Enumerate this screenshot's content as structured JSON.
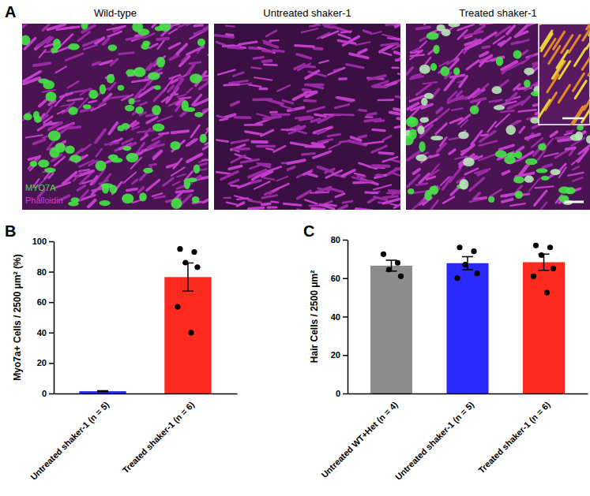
{
  "panel_a": {
    "label": "A",
    "titles": [
      "Wild-type",
      "Untreated shaker-1",
      "Treated shaker-1"
    ],
    "channels": [
      {
        "text": "MYO7A",
        "color": "#3fe03f"
      },
      {
        "text": "Phalloidin",
        "color": "#d13fd6"
      }
    ]
  },
  "chart_data": [
    {
      "type": "bar",
      "annotations": [
        "B"
      ],
      "categories": [
        "Untreated shaker-1 (n = 5)",
        "Treated shaker-1 (n = 6)"
      ],
      "values": [
        1.5,
        76.5
      ],
      "errors": [
        0.3,
        9.3
      ],
      "points": [
        [],
        [
          95,
          93,
          86,
          83,
          57,
          40
        ]
      ],
      "colors": [
        "#2a2aff",
        "#ff2a1f"
      ],
      "y_label": "Myo7a+ Cells / 2500 μm² (%)",
      "ylim": [
        0,
        100
      ],
      "yticks": [
        0,
        20,
        40,
        60,
        80,
        100
      ]
    },
    {
      "type": "bar",
      "annotations": [
        "C"
      ],
      "categories": [
        "Untreated WT+Het (n = 4)",
        "Untreated shaker-1 (n = 5)",
        "Treated shaker-1 (n = 6)"
      ],
      "values": [
        66.5,
        67.8,
        68.3
      ],
      "errors": [
        2.8,
        3.4,
        4.2
      ],
      "points": [
        [
          72.5,
          68,
          64.5,
          61
        ],
        [
          76,
          74,
          67,
          62.5,
          60
        ],
        [
          77,
          76,
          72,
          65,
          61,
          52.5
        ]
      ],
      "colors": [
        "#8c8c8c",
        "#2a2aff",
        "#ff2a1f"
      ],
      "y_label": "Hair Cells / 2500 μm²",
      "ylim": [
        0,
        80
      ],
      "yticks": [
        0,
        20,
        40,
        60,
        80
      ]
    }
  ]
}
